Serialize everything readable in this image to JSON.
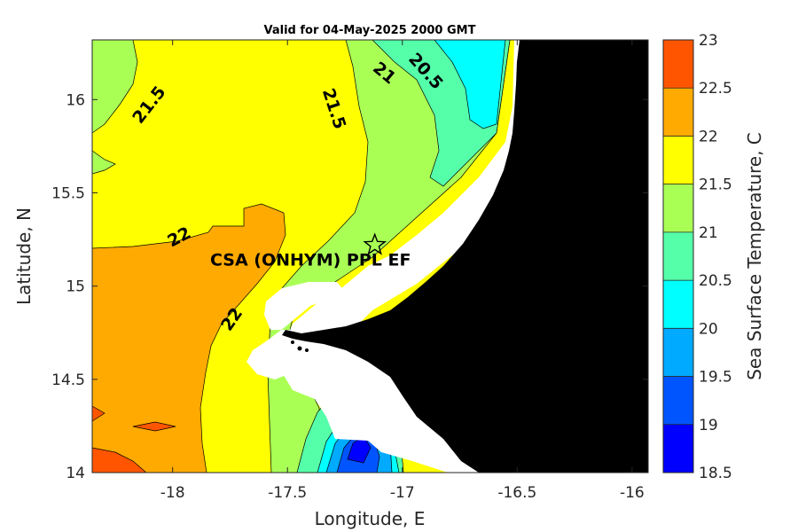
{
  "title": "Valid for 04-May-2025 2000 GMT",
  "site_label": "CSA (ONHYM) PPL EF",
  "map": {
    "xlabel": "Longitude, E",
    "ylabel": "Latitude, N",
    "xlim": [
      -18.35,
      -15.93
    ],
    "ylim": [
      14.0,
      16.32
    ],
    "x_ticks": [
      -18,
      -17.5,
      -17,
      -16.5,
      -16
    ],
    "y_ticks": [
      14,
      14.5,
      15,
      15.5,
      16
    ],
    "x_tick_labels": [
      "-18",
      "-17.5",
      "-17",
      "-16.5",
      "-16"
    ],
    "y_tick_labels": [
      "14",
      "14.5",
      "15",
      "15.5",
      "16"
    ],
    "site": {
      "lon": -17.12,
      "lat": 15.22
    },
    "land_color": "#000000",
    "mask_color": "#ffffff"
  },
  "contour_labels": [
    {
      "text": "21.5",
      "lon": -18.1,
      "lat": 15.97,
      "rotate": -52
    },
    {
      "text": "21",
      "lon": -17.08,
      "lat": 16.14,
      "rotate": 40
    },
    {
      "text": "20.5",
      "lon": -16.9,
      "lat": 16.15,
      "rotate": 48
    },
    {
      "text": "21.5",
      "lon": -17.3,
      "lat": 15.95,
      "rotate": 72
    },
    {
      "text": "22",
      "lon": -17.97,
      "lat": 15.26,
      "rotate": -28
    },
    {
      "text": "22",
      "lon": -17.74,
      "lat": 14.82,
      "rotate": -55
    }
  ],
  "colorbar": {
    "label": "Sea Surface Temperature, C",
    "min": 18.5,
    "max": 23,
    "tick_labels": [
      "18.5",
      "19",
      "19.5",
      "20",
      "20.5",
      "21",
      "21.5",
      "22",
      "22.5",
      "23"
    ],
    "bands": [
      {
        "from": 18.5,
        "to": 19.0,
        "color": "#0000ff"
      },
      {
        "from": 19.0,
        "to": 19.5,
        "color": "#0055ff"
      },
      {
        "from": 19.5,
        "to": 20.0,
        "color": "#00aaff"
      },
      {
        "from": 20.0,
        "to": 20.5,
        "color": "#00ffff"
      },
      {
        "from": 20.5,
        "to": 21.0,
        "color": "#55ffaa"
      },
      {
        "from": 21.0,
        "to": 21.5,
        "color": "#aaff55"
      },
      {
        "from": 21.5,
        "to": 22.0,
        "color": "#ffff00"
      },
      {
        "from": 22.0,
        "to": 22.5,
        "color": "#ffaa00"
      },
      {
        "from": 22.5,
        "to": 23.0,
        "color": "#ff5500"
      }
    ]
  }
}
